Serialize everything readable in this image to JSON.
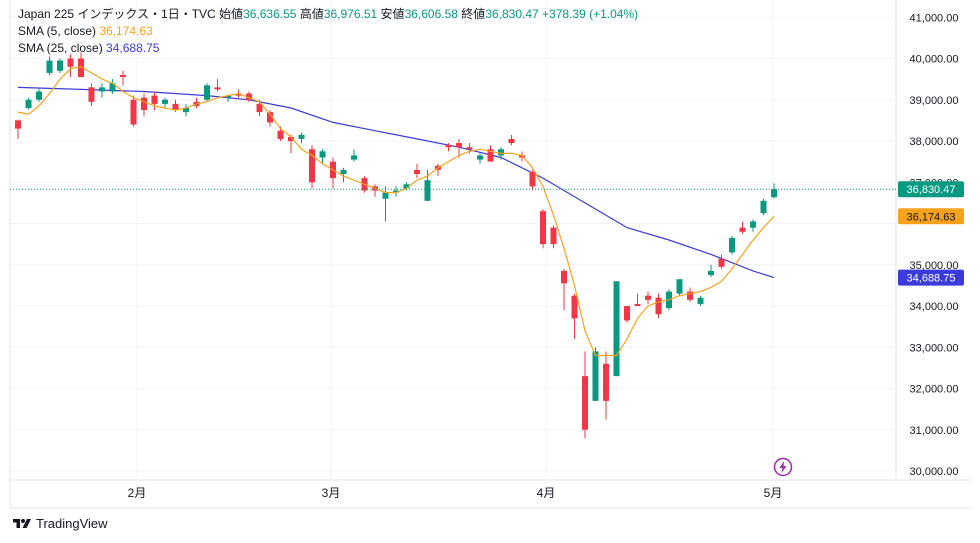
{
  "legend": {
    "symbol": "Japan 225 インデックス・1日・TVC",
    "open_label": "始値",
    "open": "36,636.55",
    "high_label": "高値",
    "high": "36,976.51",
    "low_label": "安値",
    "low": "36,606.58",
    "close_label": "終値",
    "close": "36,830.47",
    "change": "+378.39 (+1.04%)",
    "sma5_label": "SMA (5, close)",
    "sma5_value": "36,174.63",
    "sma25_label": "SMA (25, close)",
    "sma25_value": "34,688.75"
  },
  "footer": {
    "brand": "TradingView"
  },
  "colors": {
    "up": "#089981",
    "down": "#f23645",
    "sma5": "#f7a21b",
    "sma25": "#3b3bdb",
    "price_line": "#089981"
  },
  "chart_data": {
    "type": "candlestick",
    "y_axis_ticks": [
      "41,000.00",
      "40,000.00",
      "39,000.00",
      "38,000.00",
      "37,000.00",
      "35,000.00",
      "34,000.00",
      "33,000.00",
      "32,000.00",
      "31,000.00",
      "30,000.00"
    ],
    "x_axis_ticks": [
      "2月",
      "3月",
      "4月",
      "5月"
    ],
    "ylim": [
      30000,
      41200
    ],
    "price_badges": {
      "close": "36,830.47",
      "sma5": "36,174.63",
      "sma25": "34,688.75"
    },
    "candles": [
      {
        "i": 0,
        "o": 38500,
        "h": 38520,
        "l": 38050,
        "c": 38300
      },
      {
        "i": 1,
        "o": 38800,
        "h": 39050,
        "l": 38760,
        "c": 39000
      },
      {
        "i": 2,
        "o": 39000,
        "h": 39300,
        "l": 38950,
        "c": 39200
      },
      {
        "i": 3,
        "o": 39650,
        "h": 40050,
        "l": 39600,
        "c": 39950
      },
      {
        "i": 4,
        "o": 39700,
        "h": 40000,
        "l": 39650,
        "c": 39950
      },
      {
        "i": 5,
        "o": 40000,
        "h": 40100,
        "l": 39550,
        "c": 39800
      },
      {
        "i": 6,
        "o": 40000,
        "h": 40150,
        "l": 39550,
        "c": 39550
      },
      {
        "i": 7,
        "o": 39300,
        "h": 39400,
        "l": 38850,
        "c": 38950
      },
      {
        "i": 8,
        "o": 39200,
        "h": 39400,
        "l": 39050,
        "c": 39300
      },
      {
        "i": 9,
        "o": 39200,
        "h": 39500,
        "l": 39150,
        "c": 39400
      },
      {
        "i": 10,
        "o": 39600,
        "h": 39700,
        "l": 39350,
        "c": 39550
      },
      {
        "i": 11,
        "o": 39000,
        "h": 39100,
        "l": 38350,
        "c": 38400
      },
      {
        "i": 12,
        "o": 39050,
        "h": 39150,
        "l": 38600,
        "c": 38750
      },
      {
        "i": 13,
        "o": 39100,
        "h": 39200,
        "l": 38750,
        "c": 38900
      },
      {
        "i": 14,
        "o": 38900,
        "h": 39050,
        "l": 38800,
        "c": 39000
      },
      {
        "i": 15,
        "o": 38900,
        "h": 39000,
        "l": 38700,
        "c": 38750
      },
      {
        "i": 16,
        "o": 38700,
        "h": 38900,
        "l": 38600,
        "c": 38800
      },
      {
        "i": 17,
        "o": 38950,
        "h": 39050,
        "l": 38800,
        "c": 38850
      },
      {
        "i": 18,
        "o": 39000,
        "h": 39400,
        "l": 38950,
        "c": 39350
      },
      {
        "i": 19,
        "o": 39300,
        "h": 39500,
        "l": 39200,
        "c": 39250
      },
      {
        "i": 20,
        "o": 39050,
        "h": 39100,
        "l": 38950,
        "c": 39100
      },
      {
        "i": 21,
        "o": 39150,
        "h": 39250,
        "l": 39050,
        "c": 39100
      },
      {
        "i": 22,
        "o": 39150,
        "h": 39200,
        "l": 38950,
        "c": 39000
      },
      {
        "i": 23,
        "o": 38900,
        "h": 39000,
        "l": 38600,
        "c": 38700
      },
      {
        "i": 24,
        "o": 38700,
        "h": 38750,
        "l": 38350,
        "c": 38450
      },
      {
        "i": 25,
        "o": 38250,
        "h": 38350,
        "l": 38000,
        "c": 38050
      },
      {
        "i": 26,
        "o": 38100,
        "h": 38150,
        "l": 37700,
        "c": 38000
      },
      {
        "i": 27,
        "o": 38050,
        "h": 38200,
        "l": 37950,
        "c": 38150
      },
      {
        "i": 28,
        "o": 37800,
        "h": 37900,
        "l": 36850,
        "c": 37000
      },
      {
        "i": 29,
        "o": 37600,
        "h": 37800,
        "l": 37450,
        "c": 37750
      },
      {
        "i": 30,
        "o": 37500,
        "h": 37600,
        "l": 36850,
        "c": 37100
      },
      {
        "i": 31,
        "o": 37200,
        "h": 37350,
        "l": 37000,
        "c": 37300
      },
      {
        "i": 32,
        "o": 37550,
        "h": 37800,
        "l": 37500,
        "c": 37650
      },
      {
        "i": 33,
        "o": 37100,
        "h": 37150,
        "l": 36750,
        "c": 36800
      },
      {
        "i": 34,
        "o": 36900,
        "h": 36950,
        "l": 36650,
        "c": 36800
      },
      {
        "i": 35,
        "o": 36600,
        "h": 36900,
        "l": 36050,
        "c": 36750
      },
      {
        "i": 36,
        "o": 36750,
        "h": 36900,
        "l": 36650,
        "c": 36800
      },
      {
        "i": 37,
        "o": 36850,
        "h": 37000,
        "l": 36800,
        "c": 36950
      },
      {
        "i": 38,
        "o": 37300,
        "h": 37450,
        "l": 37100,
        "c": 37200
      },
      {
        "i": 39,
        "o": 36550,
        "h": 37300,
        "l": 36550,
        "c": 37050
      },
      {
        "i": 40,
        "o": 37400,
        "h": 37450,
        "l": 37150,
        "c": 37300
      },
      {
        "i": 41,
        "o": 37900,
        "h": 37950,
        "l": 37750,
        "c": 37850
      },
      {
        "i": 42,
        "o": 37950,
        "h": 38050,
        "l": 37600,
        "c": 37850
      },
      {
        "i": 43,
        "o": 37850,
        "h": 37950,
        "l": 37700,
        "c": 37800
      },
      {
        "i": 44,
        "o": 37550,
        "h": 37700,
        "l": 37450,
        "c": 37650
      },
      {
        "i": 45,
        "o": 37800,
        "h": 37900,
        "l": 37500,
        "c": 37500
      },
      {
        "i": 46,
        "o": 37650,
        "h": 37850,
        "l": 37550,
        "c": 37800
      },
      {
        "i": 47,
        "o": 38050,
        "h": 38150,
        "l": 37900,
        "c": 37950
      },
      {
        "i": 48,
        "o": 37650,
        "h": 37750,
        "l": 37500,
        "c": 37600
      },
      {
        "i": 49,
        "o": 37250,
        "h": 37300,
        "l": 36800,
        "c": 36900
      },
      {
        "i": 50,
        "o": 36300,
        "h": 36350,
        "l": 35400,
        "c": 35500
      },
      {
        "i": 51,
        "o": 35900,
        "h": 35950,
        "l": 35400,
        "c": 35500
      },
      {
        "i": 52,
        "o": 34850,
        "h": 34900,
        "l": 33900,
        "c": 34550
      },
      {
        "i": 53,
        "o": 34250,
        "h": 34300,
        "l": 33200,
        "c": 33700
      },
      {
        "i": 54,
        "o": 32300,
        "h": 32900,
        "l": 30800,
        "c": 31000
      },
      {
        "i": 55,
        "o": 31700,
        "h": 33000,
        "l": 31700,
        "c": 32900
      },
      {
        "i": 56,
        "o": 32600,
        "h": 32900,
        "l": 31250,
        "c": 31700
      },
      {
        "i": 57,
        "o": 32300,
        "h": 34600,
        "l": 32300,
        "c": 34600
      },
      {
        "i": 58,
        "o": 34000,
        "h": 34000,
        "l": 33600,
        "c": 33650
      },
      {
        "i": 59,
        "o": 34050,
        "h": 34300,
        "l": 34000,
        "c": 34000
      },
      {
        "i": 60,
        "o": 34250,
        "h": 34350,
        "l": 34050,
        "c": 34150
      },
      {
        "i": 61,
        "o": 34200,
        "h": 34300,
        "l": 33700,
        "c": 33800
      },
      {
        "i": 62,
        "o": 33950,
        "h": 34400,
        "l": 33900,
        "c": 34350
      },
      {
        "i": 63,
        "o": 34300,
        "h": 34650,
        "l": 34250,
        "c": 34650
      },
      {
        "i": 64,
        "o": 34350,
        "h": 34450,
        "l": 34100,
        "c": 34150
      },
      {
        "i": 65,
        "o": 34050,
        "h": 34250,
        "l": 34000,
        "c": 34200
      },
      {
        "i": 66,
        "o": 34750,
        "h": 35000,
        "l": 34700,
        "c": 34850
      },
      {
        "i": 67,
        "o": 35150,
        "h": 35250,
        "l": 34900,
        "c": 34950
      },
      {
        "i": 68,
        "o": 35300,
        "h": 35700,
        "l": 35250,
        "c": 35650
      },
      {
        "i": 69,
        "o": 35900,
        "h": 36050,
        "l": 35750,
        "c": 35800
      },
      {
        "i": 70,
        "o": 35900,
        "h": 36100,
        "l": 35800,
        "c": 36050
      },
      {
        "i": 71,
        "o": 36250,
        "h": 36600,
        "l": 36200,
        "c": 36550
      },
      {
        "i": 72,
        "o": 36636.55,
        "h": 36976.51,
        "l": 36606.58,
        "c": 36830.47
      }
    ],
    "sma5": [
      [
        0,
        38700
      ],
      [
        1,
        38650
      ],
      [
        2,
        38850
      ],
      [
        3,
        39150
      ],
      [
        4,
        39500
      ],
      [
        5,
        39750
      ],
      [
        6,
        39800
      ],
      [
        7,
        39650
      ],
      [
        8,
        39500
      ],
      [
        9,
        39400
      ],
      [
        10,
        39200
      ],
      [
        11,
        39050
      ],
      [
        12,
        38950
      ],
      [
        13,
        38850
      ],
      [
        14,
        38800
      ],
      [
        15,
        38750
      ],
      [
        16,
        38800
      ],
      [
        17,
        38900
      ],
      [
        18,
        38950
      ],
      [
        19,
        39050
      ],
      [
        20,
        39100
      ],
      [
        21,
        39150
      ],
      [
        22,
        39050
      ],
      [
        23,
        38950
      ],
      [
        24,
        38650
      ],
      [
        25,
        38300
      ],
      [
        26,
        38100
      ],
      [
        27,
        37800
      ],
      [
        28,
        37650
      ],
      [
        29,
        37450
      ],
      [
        30,
        37300
      ],
      [
        31,
        37150
      ],
      [
        32,
        37050
      ],
      [
        33,
        36950
      ],
      [
        34,
        36850
      ],
      [
        35,
        36750
      ],
      [
        36,
        36750
      ],
      [
        37,
        36850
      ],
      [
        38,
        37050
      ],
      [
        39,
        37150
      ],
      [
        40,
        37350
      ],
      [
        41,
        37500
      ],
      [
        42,
        37650
      ],
      [
        43,
        37750
      ],
      [
        44,
        37800
      ],
      [
        45,
        37750
      ],
      [
        46,
        37700
      ],
      [
        47,
        37700
      ],
      [
        48,
        37650
      ],
      [
        49,
        37350
      ],
      [
        50,
        36900
      ],
      [
        51,
        36200
      ],
      [
        52,
        35400
      ],
      [
        53,
        34500
      ],
      [
        54,
        33400
      ],
      [
        55,
        32800
      ],
      [
        56,
        32800
      ],
      [
        57,
        32800
      ],
      [
        58,
        33200
      ],
      [
        59,
        33700
      ],
      [
        60,
        34000
      ],
      [
        61,
        34100
      ],
      [
        62,
        34150
      ],
      [
        63,
        34250
      ],
      [
        64,
        34300
      ],
      [
        65,
        34350
      ],
      [
        66,
        34450
      ],
      [
        67,
        34600
      ],
      [
        68,
        34900
      ],
      [
        69,
        35250
      ],
      [
        70,
        35600
      ],
      [
        71,
        35900
      ],
      [
        72,
        36174.63
      ]
    ],
    "sma25": [
      [
        0,
        39300
      ],
      [
        6,
        39250
      ],
      [
        12,
        39200
      ],
      [
        18,
        39100
      ],
      [
        22,
        39000
      ],
      [
        26,
        38800
      ],
      [
        30,
        38450
      ],
      [
        34,
        38250
      ],
      [
        38,
        38050
      ],
      [
        42,
        37850
      ],
      [
        46,
        37600
      ],
      [
        50,
        37100
      ],
      [
        54,
        36500
      ],
      [
        58,
        35900
      ],
      [
        62,
        35600
      ],
      [
        66,
        35250
      ],
      [
        70,
        34850
      ],
      [
        72,
        34688.75
      ]
    ]
  }
}
